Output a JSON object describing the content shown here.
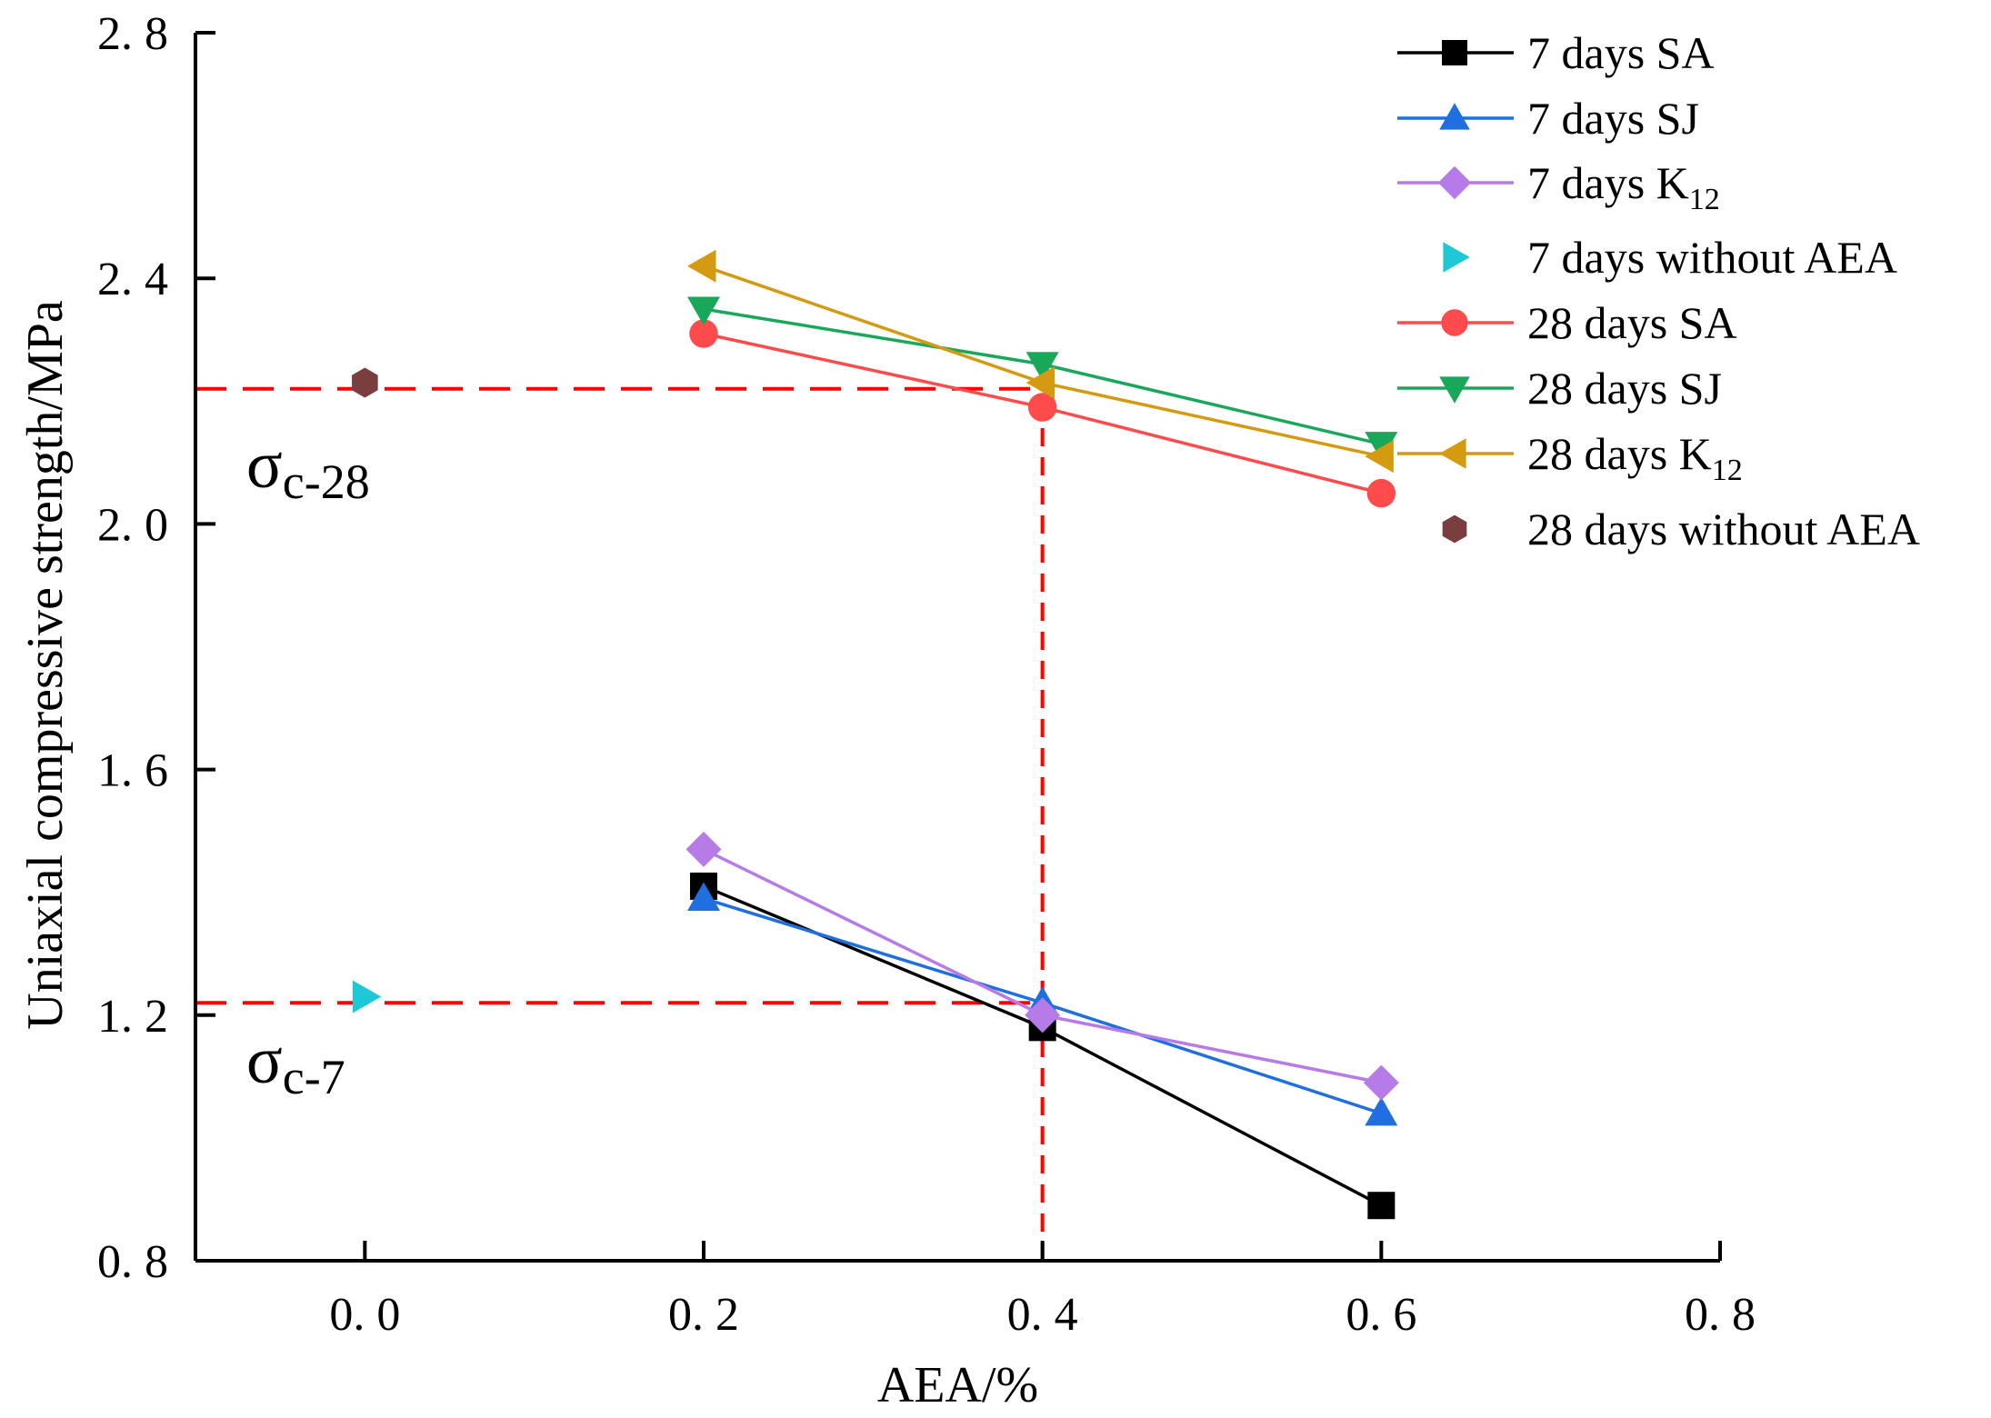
{
  "chart_data": {
    "type": "line",
    "title": "",
    "xlabel": "AEA/%",
    "ylabel": "Uniaxial compressive strength/MPa",
    "xlim": [
      -0.1,
      0.8
    ],
    "ylim": [
      0.8,
      2.8
    ],
    "x_ticks": [
      0.0,
      0.2,
      0.4,
      0.6,
      0.8
    ],
    "x_tick_labels": [
      "0. 0",
      "0. 2",
      "0. 4",
      "0. 6",
      "0. 8"
    ],
    "y_ticks": [
      0.8,
      1.2,
      1.6,
      2.0,
      2.4,
      2.8
    ],
    "y_tick_labels": [
      "0. 8",
      "1. 2",
      "1. 6",
      "2. 0",
      "2. 4",
      "2. 8"
    ],
    "grid": false,
    "legend_position": "top-right",
    "series": [
      {
        "name": "7 days SA",
        "legend_main": "7 days SA",
        "legend_sub": "",
        "color": "#000000",
        "marker": "square",
        "x": [
          0.2,
          0.4,
          0.6
        ],
        "y": [
          1.41,
          1.18,
          0.89
        ]
      },
      {
        "name": "7 days SJ",
        "legend_main": "7 days SJ",
        "legend_sub": "",
        "color": "#1f6fe0",
        "marker": "triangle-up",
        "x": [
          0.2,
          0.4,
          0.6
        ],
        "y": [
          1.39,
          1.22,
          1.04
        ]
      },
      {
        "name": "7 days K12",
        "legend_main": "7 days K",
        "legend_sub": "12",
        "color": "#b77be8",
        "marker": "diamond",
        "x": [
          0.2,
          0.4,
          0.6
        ],
        "y": [
          1.47,
          1.2,
          1.09
        ]
      },
      {
        "name": "7 days without AEA",
        "legend_main": "7 days without AEA",
        "legend_sub": "",
        "color": "#1fc8d6",
        "marker": "triangle-right",
        "x": [
          0.0
        ],
        "y": [
          1.23
        ]
      },
      {
        "name": "28 days SA",
        "legend_main": "28 days SA",
        "legend_sub": "",
        "color": "#ff4b4b",
        "marker": "circle",
        "x": [
          0.2,
          0.4,
          0.6
        ],
        "y": [
          2.31,
          2.19,
          2.05
        ]
      },
      {
        "name": "28 days SJ",
        "legend_main": "28 days SJ",
        "legend_sub": "",
        "color": "#19a85a",
        "marker": "triangle-down",
        "x": [
          0.2,
          0.4,
          0.6
        ],
        "y": [
          2.35,
          2.26,
          2.13
        ]
      },
      {
        "name": "28 days K12",
        "legend_main": "28 days K",
        "legend_sub": "12",
        "color": "#d49a12",
        "marker": "triangle-left",
        "x": [
          0.2,
          0.4,
          0.6
        ],
        "y": [
          2.42,
          2.23,
          2.11
        ]
      },
      {
        "name": "28 days without AEA",
        "legend_main": "28 days without AEA",
        "legend_sub": "",
        "color": "#7a3e3e",
        "marker": "hexagon",
        "x": [
          0.0
        ],
        "y": [
          2.23
        ]
      }
    ],
    "reference_lines": [
      {
        "name": "sigma-c-28",
        "y": 2.22,
        "x_to": 0.4,
        "color": "#ff0000",
        "dash": "dashed"
      },
      {
        "name": "sigma-c-7",
        "y": 1.22,
        "x_to": 0.4,
        "color": "#ff0000",
        "dash": "dashed"
      }
    ],
    "vertical_reference": {
      "x": 0.4,
      "y_from": 0.8,
      "y_to": 2.22,
      "color": "#ff0000"
    },
    "annotations": [
      {
        "name": "sigma-c-28-label",
        "symbol": "σ",
        "subscript": "c-28",
        "x": -0.07,
        "y": 2.06
      },
      {
        "name": "sigma-c-7-label",
        "symbol": "σ",
        "subscript": "c-7",
        "x": -0.07,
        "y": 1.09
      }
    ]
  }
}
